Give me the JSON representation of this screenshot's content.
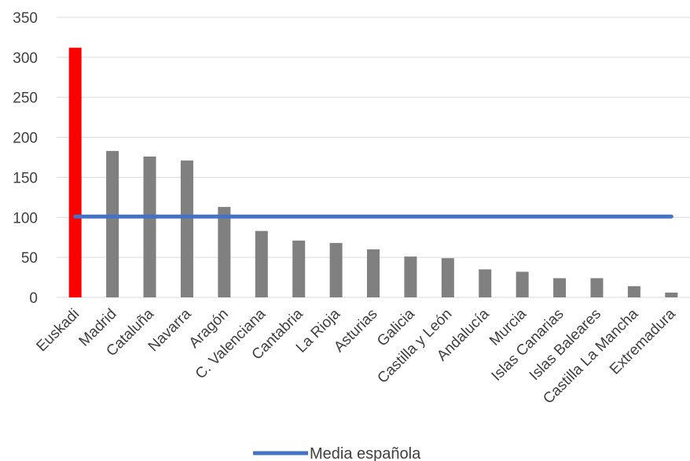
{
  "chart_data": {
    "type": "bar",
    "categories": [
      "Euskadi",
      "Madrid",
      "Cataluña",
      "Navarra",
      "Aragón",
      "C. Valenciana",
      "Cantabria",
      "La Rioja",
      "Asturias",
      "Galicia",
      "Castilla y León",
      "Andalucía",
      "Murcia",
      "Islas Canarias",
      "Islas Baleares",
      "Castilla La Mancha",
      "Extremadura"
    ],
    "values": [
      312,
      183,
      176,
      171,
      113,
      83,
      71,
      68,
      60,
      51,
      49,
      35,
      32,
      24,
      24,
      14,
      6
    ],
    "bar_colors": [
      "#FF0000",
      "#808080",
      "#808080",
      "#808080",
      "#808080",
      "#808080",
      "#808080",
      "#808080",
      "#808080",
      "#808080",
      "#808080",
      "#808080",
      "#808080",
      "#808080",
      "#808080",
      "#808080",
      "#808080"
    ],
    "reference_line": {
      "name": "Media española",
      "value": 101,
      "color": "#4472C4"
    },
    "ylim": [
      0,
      350
    ],
    "yticks": [
      0,
      50,
      100,
      150,
      200,
      250,
      300,
      350
    ],
    "grid": true,
    "legend_position": "bottom",
    "title": "",
    "xlabel": "",
    "ylabel": ""
  }
}
